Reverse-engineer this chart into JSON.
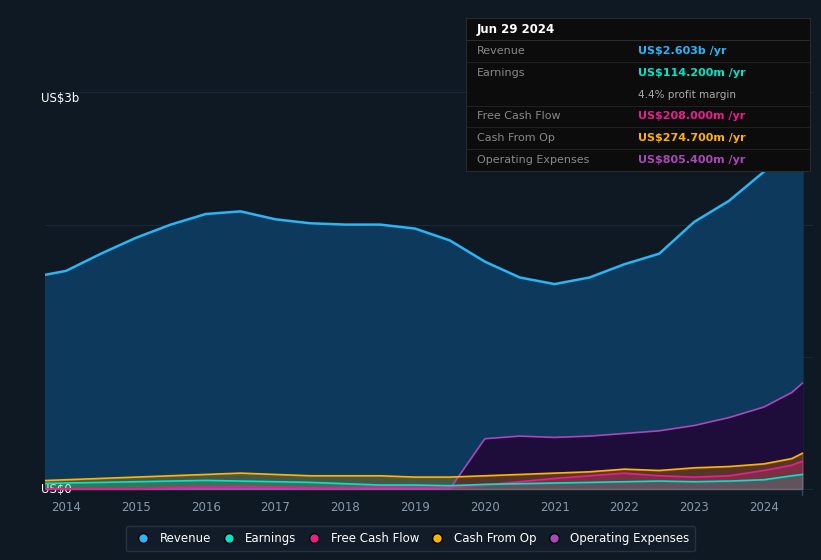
{
  "bg_color": "#0f1923",
  "chart_bg": "#0f1923",
  "grid_color": "#1e2f40",
  "ylabel_top": "US$3b",
  "ylabel_bottom": "US$0",
  "years": [
    2013.5,
    2014.0,
    2014.5,
    2015.0,
    2015.5,
    2016.0,
    2016.5,
    2017.0,
    2017.5,
    2018.0,
    2018.5,
    2019.0,
    2019.5,
    2020.0,
    2020.5,
    2021.0,
    2021.5,
    2022.0,
    2022.5,
    2023.0,
    2023.5,
    2024.0,
    2024.4,
    2024.55
  ],
  "revenue": [
    1.6,
    1.65,
    1.78,
    1.9,
    2.0,
    2.08,
    2.1,
    2.04,
    2.01,
    2.0,
    2.0,
    1.97,
    1.88,
    1.72,
    1.6,
    1.55,
    1.6,
    1.7,
    1.78,
    2.02,
    2.18,
    2.4,
    2.55,
    2.6
  ],
  "earnings": [
    0.04,
    0.045,
    0.05,
    0.055,
    0.06,
    0.065,
    0.06,
    0.055,
    0.05,
    0.04,
    0.03,
    0.03,
    0.025,
    0.035,
    0.04,
    0.045,
    0.05,
    0.055,
    0.06,
    0.055,
    0.06,
    0.07,
    0.1,
    0.11
  ],
  "free_cash_flow": [
    0.0,
    0.0,
    0.0,
    0.0,
    0.01,
    0.015,
    0.02,
    0.015,
    0.01,
    0.01,
    0.015,
    0.02,
    0.01,
    0.03,
    0.055,
    0.08,
    0.1,
    0.12,
    0.1,
    0.09,
    0.1,
    0.14,
    0.18,
    0.21
  ],
  "cash_from_op": [
    0.06,
    0.07,
    0.08,
    0.09,
    0.1,
    0.11,
    0.12,
    0.11,
    0.1,
    0.1,
    0.1,
    0.09,
    0.09,
    0.1,
    0.11,
    0.12,
    0.13,
    0.15,
    0.14,
    0.16,
    0.17,
    0.19,
    0.23,
    0.27
  ],
  "operating_expenses": [
    0.0,
    0.0,
    0.0,
    0.0,
    0.0,
    0.0,
    0.0,
    0.0,
    0.0,
    0.0,
    0.0,
    0.0,
    0.0,
    0.38,
    0.4,
    0.39,
    0.4,
    0.42,
    0.44,
    0.48,
    0.54,
    0.62,
    0.73,
    0.8
  ],
  "revenue_color": "#29b6f6",
  "earnings_color": "#00e5c8",
  "free_cash_flow_color": "#e91e8c",
  "cash_from_op_color": "#ffb300",
  "operating_expenses_color": "#ab47bc",
  "revenue_fill_color": "#0d3a5c",
  "operating_expenses_fill_color": "#1e0d3a",
  "tooltip_date": "Jun 29 2024",
  "tooltip_revenue_label": "Revenue",
  "tooltip_revenue_value": "US$2.603b",
  "tooltip_earnings_label": "Earnings",
  "tooltip_earnings_value": "US$114.200m",
  "tooltip_margin_value": "4.4% profit margin",
  "tooltip_fcf_label": "Free Cash Flow",
  "tooltip_fcf_value": "US$208.000m",
  "tooltip_cfo_label": "Cash From Op",
  "tooltip_cfo_value": "US$274.700m",
  "tooltip_opex_label": "Operating Expenses",
  "tooltip_opex_value": "US$805.400m",
  "legend_items": [
    "Revenue",
    "Earnings",
    "Free Cash Flow",
    "Cash From Op",
    "Operating Expenses"
  ],
  "legend_colors": [
    "#29b6f6",
    "#00e5c8",
    "#e91e8c",
    "#ffb300",
    "#ab47bc"
  ],
  "x_ticks": [
    2014,
    2015,
    2016,
    2017,
    2018,
    2019,
    2020,
    2021,
    2022,
    2023,
    2024
  ],
  "xlim_left": 2013.7,
  "xlim_right": 2024.7,
  "ylim_bottom": -0.05,
  "ylim_top": 3.0
}
